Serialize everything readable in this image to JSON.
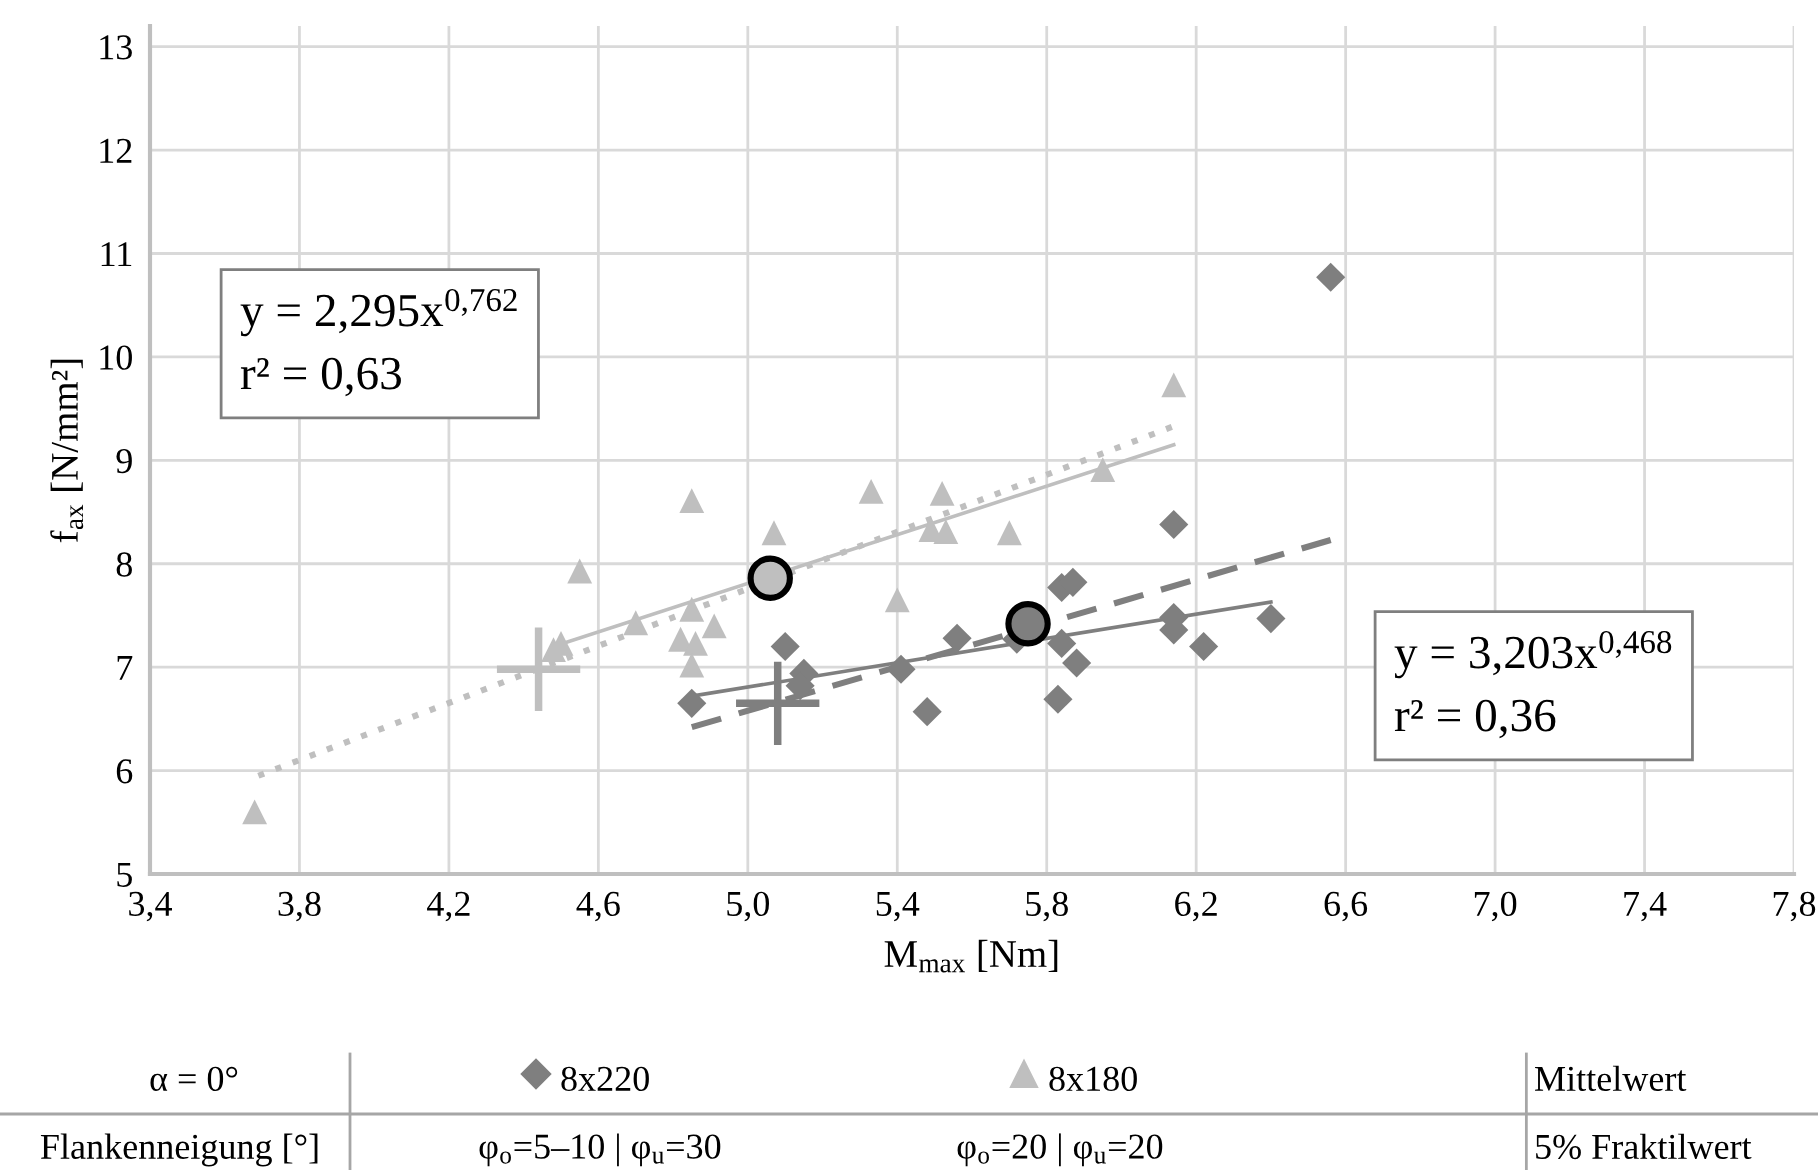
{
  "chart_data": {
    "type": "scatter",
    "xlabel": "M$_{max}$ [Nm]",
    "ylabel": "f$_{ax}$ [N/mm²]",
    "xlim": [
      3.4,
      7.8
    ],
    "ylim": [
      5,
      13.2
    ],
    "xticks": [
      {
        "value": 3.4,
        "label": "3,4"
      },
      {
        "value": 3.8,
        "label": "3,8"
      },
      {
        "value": 4.2,
        "label": "4,2"
      },
      {
        "value": 4.6,
        "label": "4,6"
      },
      {
        "value": 5.0,
        "label": "5,0"
      },
      {
        "value": 5.4,
        "label": "5,4"
      },
      {
        "value": 5.8,
        "label": "5,8"
      },
      {
        "value": 6.2,
        "label": "6,2"
      },
      {
        "value": 6.6,
        "label": "6,6"
      },
      {
        "value": 7.0,
        "label": "7,0"
      },
      {
        "value": 7.4,
        "label": "7,4"
      },
      {
        "value": 7.8,
        "label": "7,8"
      }
    ],
    "yticks": [
      5,
      6,
      7,
      8,
      9,
      10,
      11,
      12,
      13
    ],
    "grid": true,
    "legend": "bottom",
    "series": [
      {
        "name": "8x220",
        "marker": "diamond",
        "color": "#7f7f7f",
        "x": [
          4.85,
          5.1,
          5.15,
          5.14,
          5.41,
          5.48,
          5.56,
          5.72,
          5.83,
          5.84,
          5.84,
          5.87,
          5.88,
          6.14,
          6.14,
          6.14,
          6.22,
          6.4,
          6.56
        ],
        "values": [
          6.65,
          7.2,
          6.94,
          6.82,
          6.98,
          6.57,
          7.28,
          7.27,
          6.69,
          7.23,
          7.77,
          7.82,
          7.04,
          8.38,
          7.48,
          7.36,
          7.2,
          7.47,
          10.77
        ]
      },
      {
        "name": "8x180",
        "marker": "triangle",
        "color": "#bfbfbf",
        "x": [
          3.68,
          4.48,
          4.5,
          4.55,
          4.7,
          4.85,
          4.85,
          4.82,
          4.86,
          4.85,
          4.91,
          5.07,
          5.33,
          5.4,
          5.52,
          5.49,
          5.53,
          5.7,
          5.95,
          6.14
        ],
        "values": [
          5.6,
          7.17,
          7.23,
          7.93,
          7.43,
          8.61,
          7.56,
          7.27,
          7.23,
          7.02,
          7.4,
          8.3,
          8.7,
          7.65,
          8.68,
          8.33,
          8.31,
          8.3,
          8.91,
          9.73
        ]
      },
      {
        "type": "line",
        "line_style": "solid",
        "color": "#bfbfbf",
        "x": [
          4.48,
          6.14
        ],
        "values": [
          7.2,
          9.15
        ]
      },
      {
        "type": "line",
        "line_style": "dotted",
        "color": "#bfbfbf",
        "x": [
          3.69,
          6.14
        ],
        "values": [
          5.95,
          9.33
        ]
      },
      {
        "type": "line",
        "line_style": "solid",
        "color": "#7f7f7f",
        "x": [
          4.85,
          6.4
        ],
        "values": [
          6.72,
          7.63
        ]
      },
      {
        "type": "line",
        "line_style": "dashed",
        "color": "#7f7f7f",
        "x": [
          4.85,
          6.56
        ],
        "values": [
          6.42,
          8.23
        ]
      },
      {
        "type": "scatter",
        "marker": "circle",
        "color": "#bfbfbf",
        "x": [
          5.06
        ],
        "values": [
          7.86
        ]
      },
      {
        "type": "scatter",
        "marker": "circle",
        "color": "#7f7f7f",
        "x": [
          5.75
        ],
        "values": [
          7.42
        ]
      },
      {
        "type": "scatter",
        "marker": "cross",
        "color": "#bfbfbf",
        "x": [
          4.44
        ],
        "values": [
          6.98
        ]
      },
      {
        "type": "scatter",
        "marker": "cross",
        "color": "#7f7f7f",
        "x": [
          5.08
        ],
        "values": [
          6.65
        ]
      }
    ],
    "annotations": [
      "y = 2,295x$^{0,762}$\nr² = 0,63",
      "y = 3,203x$^{0,468}$\nr² = 0,36",
      "α = 0°",
      "Mittelwert",
      "Flankenneigung [°]",
      "φ$_{o}$=5–10 | φ$_{u}$=30",
      "φ$_{o}$=20 | φ$_{u}$=20",
      "5% Fraktilwert"
    ]
  }
}
